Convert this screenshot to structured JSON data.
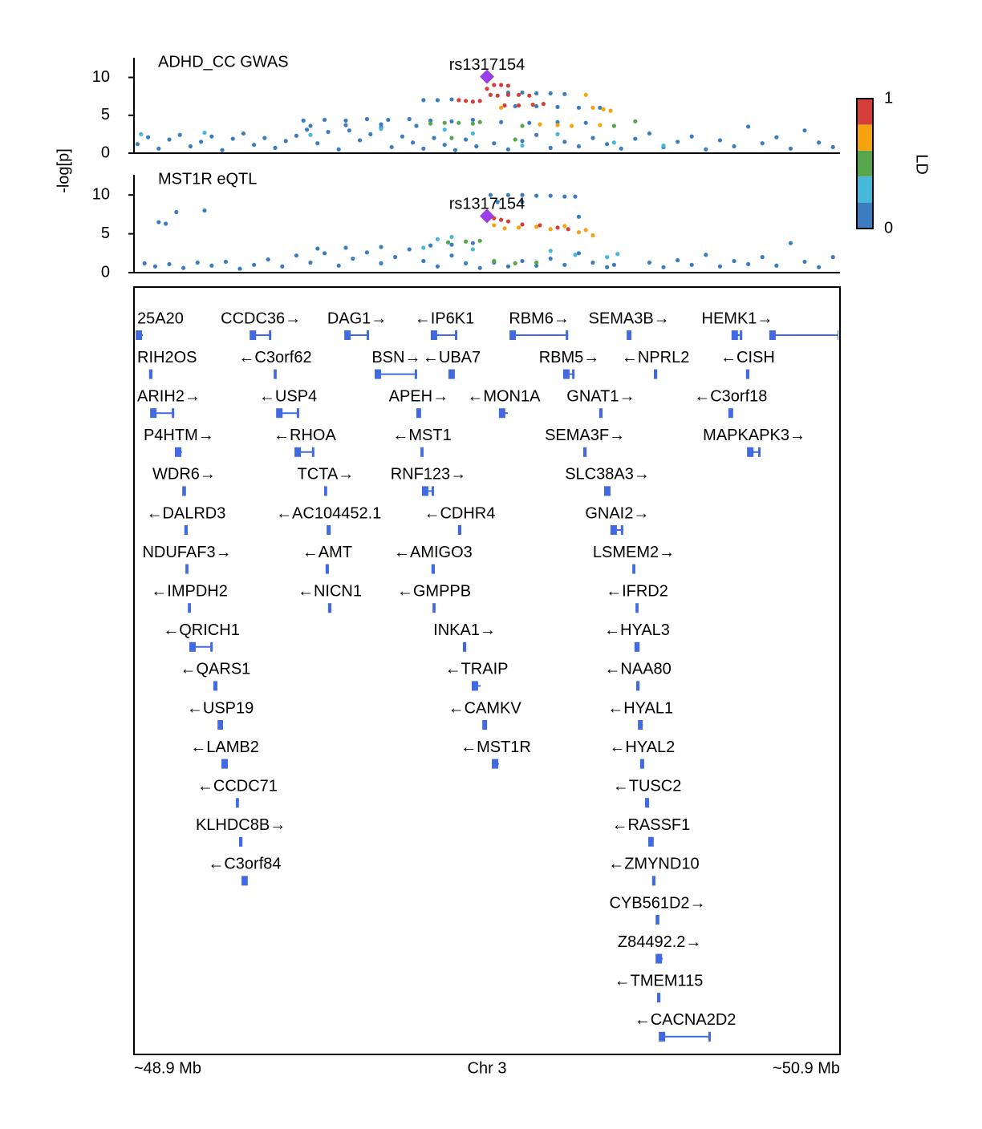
{
  "chart_data": [
    {
      "type": "scatter",
      "title": "ADHD_CC GWAS",
      "ylabel": "-log[p]",
      "xlim": [
        48.9,
        50.9
      ],
      "ylim": [
        0,
        12.6
      ],
      "yticks": [
        0,
        5,
        10
      ],
      "colorbar": {
        "title": "LD",
        "ticks": [
          0,
          1
        ]
      },
      "series": [
        {
          "color": "#3b7dbf",
          "x": [
            48.91,
            48.94,
            48.97,
            49.0,
            49.03,
            49.06,
            49.09,
            49.12,
            49.15,
            49.18,
            49.21,
            49.24,
            49.27,
            49.3,
            49.33,
            49.36,
            49.39,
            49.42,
            49.45,
            49.48,
            49.51,
            49.54,
            49.57,
            49.6,
            49.63,
            49.66,
            49.69,
            49.72,
            49.75,
            49.78,
            49.81,
            49.84,
            49.87,
            49.92,
            49.96,
            50.0,
            50.04,
            50.08,
            50.12,
            50.16,
            50.2,
            50.24,
            50.28,
            50.32,
            50.36,
            50.4,
            50.44,
            50.48,
            50.52,
            50.56,
            50.6,
            50.64,
            50.68,
            50.72,
            50.76,
            50.8,
            50.84,
            50.88,
            49.38,
            49.44,
            49.5,
            49.56,
            49.62,
            49.68,
            49.74,
            49.8,
            49.86,
            49.4,
            49.5,
            49.6,
            49.7,
            49.72,
            49.76,
            49.8,
            49.96,
            50.0,
            50.04,
            50.08,
            50.12,
            49.98,
            50.04,
            50.1,
            50.16,
            50.22,
            49.94,
            50.02,
            50.1,
            50.18
          ],
          "values": [
            1.2,
            2.1,
            0.6,
            1.8,
            2.4,
            0.9,
            1.5,
            2.2,
            0.4,
            1.9,
            2.6,
            1.1,
            2.0,
            0.7,
            1.6,
            2.3,
            3.1,
            1.3,
            2.8,
            0.5,
            3.0,
            1.7,
            2.5,
            3.4,
            0.8,
            2.2,
            1.4,
            0.6,
            2.0,
            1.1,
            0.4,
            1.8,
            0.9,
            1.3,
            0.5,
            1.6,
            2.4,
            0.7,
            1.5,
            0.9,
            2.0,
            1.2,
            0.6,
            1.9,
            2.6,
            0.8,
            1.5,
            2.2,
            0.5,
            1.7,
            0.9,
            3.5,
            1.3,
            2.1,
            0.6,
            3.0,
            1.4,
            0.8,
            4.3,
            4.4,
            4.3,
            4.5,
            4.4,
            4.5,
            4.3,
            4.2,
            4.4,
            3.6,
            3.7,
            3.8,
            3.6,
            7.0,
            7.0,
            7.1,
            8.0,
            8.0,
            7.9,
            7.9,
            7.8,
            6.2,
            6.2,
            6.1,
            6.0,
            6.0,
            4.1,
            4.0,
            4.1,
            4.0
          ]
        },
        {
          "color": "#46b8da",
          "x": [
            48.92,
            49.1,
            49.4,
            49.6,
            49.78,
            49.86,
            50.0,
            50.1,
            50.26,
            50.4
          ],
          "values": [
            2.5,
            2.7,
            2.4,
            3.2,
            3.1,
            2.6,
            1.0,
            2.5,
            1.4,
            1.0
          ]
        },
        {
          "color": "#56a64b",
          "x": [
            49.74,
            49.78,
            49.82,
            49.86,
            49.88,
            49.8,
            50.0,
            50.26,
            50.32,
            49.98
          ],
          "values": [
            3.9,
            4.0,
            4.0,
            3.9,
            4.1,
            2.0,
            3.6,
            3.6,
            4.2,
            1.8
          ]
        },
        {
          "color": "#f5a30f",
          "x": [
            49.94,
            50.1,
            50.14,
            50.18,
            50.2,
            50.23,
            50.25,
            50.22,
            50.05
          ],
          "values": [
            6.0,
            3.7,
            3.6,
            7.7,
            6.0,
            5.8,
            5.6,
            3.7,
            3.8
          ]
        },
        {
          "color": "#d43f3a",
          "x": [
            49.82,
            49.84,
            49.86,
            49.88,
            49.9,
            49.92,
            49.94,
            49.96,
            49.91,
            49.93,
            49.96,
            49.99,
            50.02,
            49.95,
            49.99,
            50.03,
            50.06
          ],
          "values": [
            7.0,
            6.9,
            6.8,
            6.9,
            8.5,
            9.0,
            9.0,
            8.9,
            7.7,
            7.6,
            7.7,
            7.7,
            7.6,
            6.3,
            6.3,
            6.4,
            6.5
          ]
        },
        {
          "color": "#9b3ee8",
          "marker": "diamond",
          "label": "rs1317154",
          "x": [
            49.9
          ],
          "values": [
            10.1
          ]
        }
      ]
    },
    {
      "type": "scatter",
      "title": "MST1R eQTL",
      "xlim": [
        48.9,
        50.9
      ],
      "ylim": [
        0,
        12.6
      ],
      "yticks": [
        0,
        5,
        10
      ],
      "series": [
        {
          "color": "#3b7dbf",
          "x": [
            48.93,
            48.96,
            49.0,
            49.04,
            49.08,
            49.12,
            49.16,
            49.2,
            49.24,
            49.28,
            49.32,
            49.36,
            49.4,
            49.44,
            49.48,
            49.52,
            49.56,
            49.6,
            49.64,
            49.68,
            49.72,
            49.76,
            49.8,
            49.84,
            49.88,
            49.92,
            49.96,
            50.0,
            50.04,
            50.08,
            50.12,
            50.16,
            50.2,
            50.24,
            50.26,
            50.36,
            50.4,
            50.44,
            50.48,
            50.52,
            50.56,
            50.6,
            50.64,
            50.68,
            50.72,
            50.76,
            50.8,
            50.84,
            50.88,
            48.97,
            49.02,
            49.1,
            48.99,
            49.91,
            49.96,
            50.0,
            50.04,
            50.08,
            50.12,
            50.15,
            49.93,
            50.0,
            49.74,
            49.8,
            49.86,
            50.16,
            49.42,
            49.5,
            49.6
          ],
          "values": [
            1.2,
            0.8,
            1.1,
            0.6,
            1.3,
            0.9,
            1.4,
            0.5,
            1.0,
            1.7,
            0.8,
            2.2,
            1.3,
            2.5,
            0.9,
            1.8,
            2.6,
            1.2,
            2.0,
            3.0,
            1.5,
            0.8,
            2.2,
            1.2,
            0.6,
            1.3,
            0.8,
            1.5,
            0.9,
            1.8,
            1.0,
            2.5,
            1.3,
            0.7,
            1.0,
            1.3,
            0.7,
            1.6,
            1.0,
            2.3,
            0.8,
            1.5,
            1.1,
            2.0,
            0.9,
            3.8,
            1.4,
            0.7,
            2.0,
            6.5,
            7.8,
            8.0,
            6.3,
            10.0,
            10.0,
            10.0,
            9.9,
            9.9,
            9.8,
            9.8,
            9.1,
            9.1,
            3.5,
            3.6,
            3.8,
            7.2,
            3.1,
            3.2,
            3.3
          ]
        },
        {
          "color": "#46b8da",
          "x": [
            49.76,
            49.72,
            49.8,
            49.86,
            50.08,
            50.15,
            50.24,
            50.27
          ],
          "values": [
            4.3,
            3.2,
            4.6,
            3.0,
            2.8,
            2.3,
            2.0,
            2.4
          ]
        },
        {
          "color": "#56a64b",
          "x": [
            49.79,
            49.84,
            49.88,
            49.92,
            49.98,
            50.04
          ],
          "values": [
            3.9,
            4.0,
            4.1,
            1.5,
            1.2,
            1.3
          ]
        },
        {
          "color": "#f5a30f",
          "x": [
            49.92,
            49.95,
            49.99,
            50.04,
            50.08,
            50.12,
            50.16,
            50.2,
            50.18
          ],
          "values": [
            6.1,
            5.7,
            5.8,
            5.9,
            5.6,
            6.0,
            5.2,
            4.8,
            5.5
          ]
        },
        {
          "color": "#d43f3a",
          "x": [
            49.92,
            49.94,
            49.96,
            50.0,
            50.05,
            50.1,
            50.13
          ],
          "values": [
            7.0,
            6.8,
            6.6,
            6.2,
            6.1,
            5.8,
            5.6
          ]
        },
        {
          "color": "#9b3ee8",
          "marker": "diamond",
          "label": "rs1317154",
          "x": [
            49.9
          ],
          "values": [
            7.3
          ]
        }
      ]
    },
    {
      "type": "genes",
      "color": "#4169e1",
      "xlabel": "Chr 3",
      "xlim": [
        48.9,
        50.9
      ],
      "xticks": [
        {
          "value": 48.9,
          "label": "~48.9 Mb"
        },
        {
          "value": 50.9,
          "label": "~50.9 Mb"
        }
      ],
      "rows": [
        [
          {
            "label": "25A20",
            "start": 48.907,
            "end": 48.925
          },
          {
            "label": "CCDC36→",
            "start": 49.23,
            "end": 49.289
          },
          {
            "label": "DAG1→",
            "start": 49.498,
            "end": 49.566
          },
          {
            "label": "←IP6K1",
            "start": 49.743,
            "end": 49.816
          },
          {
            "label": "RBM6→",
            "start": 49.966,
            "end": 50.13
          },
          {
            "label": "SEMA3B→",
            "start": 50.298,
            "end": 50.307
          },
          {
            "label": "HEMK1→",
            "start": 50.595,
            "end": 50.623
          },
          {
            "label": null,
            "start": 50.702,
            "end": 50.9
          }
        ],
        [
          {
            "label": "RIH2OS",
            "start": 48.945,
            "end": 48.95
          },
          {
            "label": "←C3orf62",
            "start": 49.298,
            "end": 49.302
          },
          {
            "label": "BSN→",
            "start": 49.584,
            "end": 49.702
          },
          {
            "label": "←UBA7",
            "start": 49.793,
            "end": 49.807
          },
          {
            "label": "RBM5→",
            "start": 50.118,
            "end": 50.148
          },
          {
            "label": "←NPRL2",
            "start": 50.375,
            "end": 50.38
          },
          {
            "label": "←CISH",
            "start": 50.636,
            "end": 50.641
          }
        ],
        [
          {
            "label": "ARIH2→",
            "start": 48.948,
            "end": 49.014
          },
          {
            "label": "←USP4",
            "start": 49.305,
            "end": 49.368
          },
          {
            "label": "APEH→",
            "start": 49.702,
            "end": 49.711
          },
          {
            "label": "←MON1A",
            "start": 49.936,
            "end": 49.959
          },
          {
            "label": "GNAT1→",
            "start": 50.22,
            "end": 50.225
          },
          {
            "label": "←C3orf18",
            "start": 50.586,
            "end": 50.595
          }
        ],
        [
          {
            "label": "P4HTM→",
            "start": 49.018,
            "end": 49.036
          },
          {
            "label": "←RHOA",
            "start": 49.357,
            "end": 49.411
          },
          {
            "label": "←MST1",
            "start": 49.714,
            "end": 49.718
          },
          {
            "label": "SEMA3F→",
            "start": 50.175,
            "end": 50.18
          },
          {
            "label": "MAPKAPK3→",
            "start": 50.639,
            "end": 50.675
          }
        ],
        [
          {
            "label": "WDR6→",
            "start": 49.039,
            "end": 49.045
          },
          {
            "label": "TCTA→",
            "start": 49.441,
            "end": 49.445
          },
          {
            "label": "RNF123→",
            "start": 49.718,
            "end": 49.75
          },
          {
            "label": "SLC38A3→",
            "start": 50.234,
            "end": 50.248
          }
        ],
        [
          {
            "label": "←DALRD3",
            "start": 49.045,
            "end": 49.05
          },
          {
            "label": "←AC104452.1",
            "start": 49.448,
            "end": 49.455
          },
          {
            "label": "←CDHR4",
            "start": 49.82,
            "end": 49.825
          },
          {
            "label": "GNAI2→",
            "start": 50.252,
            "end": 50.286
          }
        ],
        [
          {
            "label": "NDUFAF3→",
            "start": 49.048,
            "end": 49.052
          },
          {
            "label": "←AMT",
            "start": 49.445,
            "end": 49.45
          },
          {
            "label": "←AMIGO3",
            "start": 49.745,
            "end": 49.75
          },
          {
            "label": "LSMEM2→",
            "start": 50.314,
            "end": 50.318
          }
        ],
        [
          {
            "label": "←IMPDH2",
            "start": 49.055,
            "end": 49.059
          },
          {
            "label": "←NICN1",
            "start": 49.452,
            "end": 49.457
          },
          {
            "label": "←GMPPB",
            "start": 49.748,
            "end": 49.752
          },
          {
            "label": "←IFRD2",
            "start": 50.323,
            "end": 50.327
          }
        ],
        [
          {
            "label": "←QRICH1",
            "start": 49.059,
            "end": 49.123
          },
          {
            "label": "INKA1→",
            "start": 49.834,
            "end": 49.839
          },
          {
            "label": "←HYAL3",
            "start": 50.32,
            "end": 50.33
          }
        ],
        [
          {
            "label": "←QARS1",
            "start": 49.127,
            "end": 49.134
          },
          {
            "label": "←TRAIP",
            "start": 49.859,
            "end": 49.882
          },
          {
            "label": "←NAA80",
            "start": 50.325,
            "end": 50.33
          }
        ],
        [
          {
            "label": "←USP19",
            "start": 49.139,
            "end": 49.15
          },
          {
            "label": "←CAMKV",
            "start": 49.889,
            "end": 49.898
          },
          {
            "label": "←HYAL1",
            "start": 50.33,
            "end": 50.339
          }
        ],
        [
          {
            "label": "←LAMB2",
            "start": 49.15,
            "end": 49.164
          },
          {
            "label": "←MST1R",
            "start": 49.916,
            "end": 49.934
          },
          {
            "label": "←HYAL2",
            "start": 50.336,
            "end": 50.343
          }
        ],
        [
          {
            "label": "←CCDC71",
            "start": 49.191,
            "end": 49.195
          },
          {
            "label": "←TUSC2",
            "start": 50.35,
            "end": 50.357
          }
        ],
        [
          {
            "label": "KLHDC8B→",
            "start": 49.2,
            "end": 49.205
          },
          {
            "label": "←RASSF1",
            "start": 50.359,
            "end": 50.37
          }
        ],
        [
          {
            "label": "←C3orf84",
            "start": 49.207,
            "end": 49.22
          },
          {
            "label": "←ZMYND10",
            "start": 50.37,
            "end": 50.375
          }
        ],
        [
          {
            "label": "CYB561D2→",
            "start": 50.38,
            "end": 50.386
          }
        ],
        [
          {
            "label": "Z84492.2→",
            "start": 50.38,
            "end": 50.398
          }
        ],
        [
          {
            "label": "←TMEM115",
            "start": 50.384,
            "end": 50.389
          }
        ],
        [
          {
            "label": "←CACNA2D2",
            "start": 50.389,
            "end": 50.534
          }
        ]
      ]
    }
  ]
}
